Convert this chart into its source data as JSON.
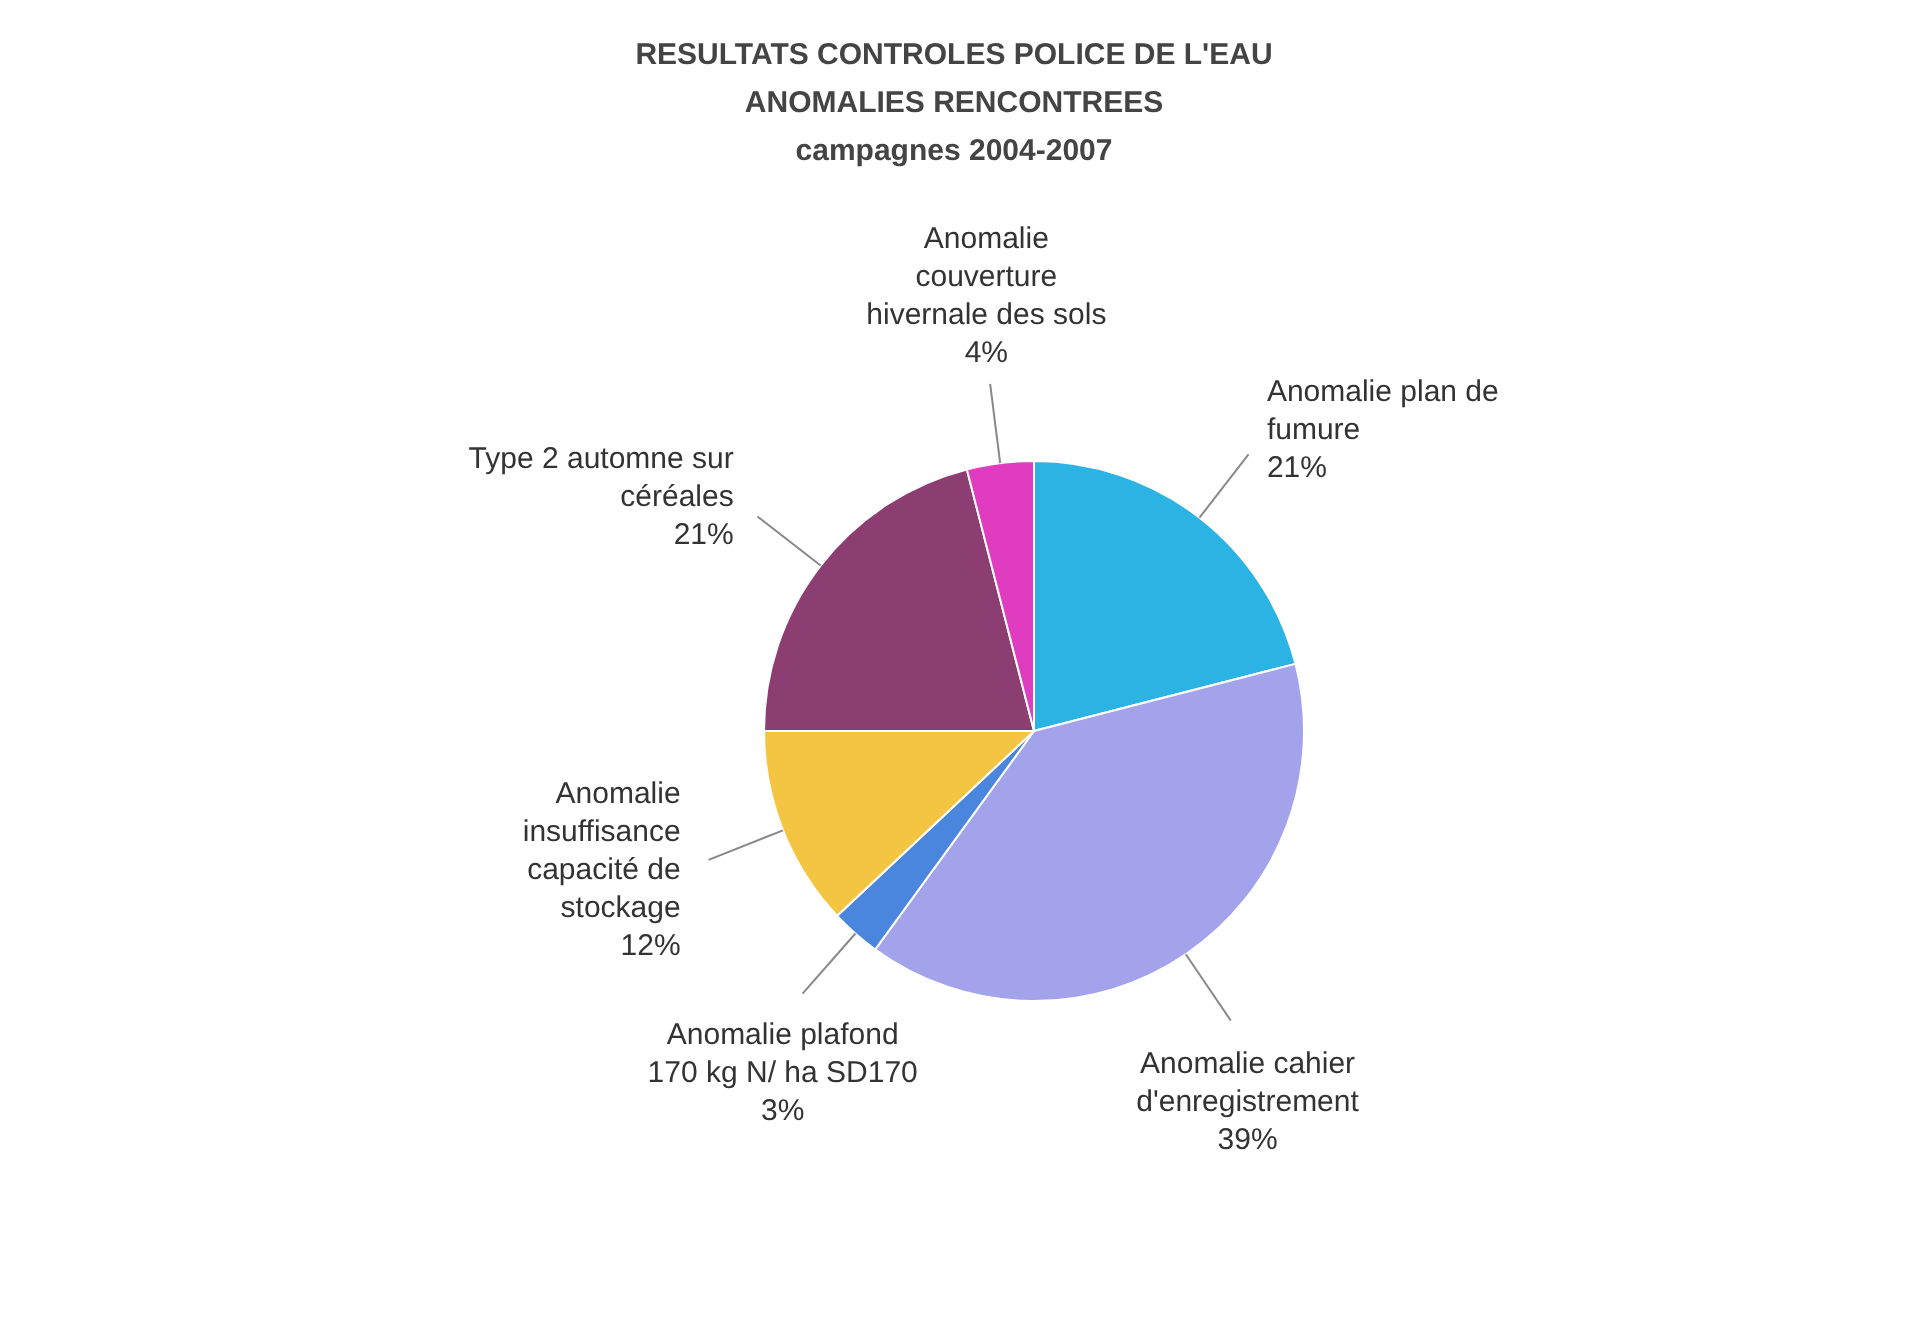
{
  "chart_data": {
    "type": "pie",
    "title": "RESULTATS CONTROLES POLICE DE L'EAU",
    "subtitle": "ANOMALIES RENCONTREES",
    "annotations": [
      "campagnes 2004-2007"
    ],
    "categories": [
      "Anomalie plan de fumure",
      "Anomalie cahier d'enregistrement",
      "Anomalie plafond 170 kg N/ ha SD170",
      "Anomalie insuffisance capacité de stockage",
      "Type 2 automne sur céréales",
      "Anomalie couverture hivernale des sols"
    ],
    "values": [
      21,
      39,
      3,
      12,
      21,
      4
    ],
    "value_labels": [
      "21%",
      "39%",
      "3%",
      "12%",
      "21%",
      "4%"
    ],
    "colors": [
      "#2bb3e3",
      "#a3a3ec",
      "#4a86de",
      "#f4c443",
      "#8c3d72",
      "#e03cbf"
    ]
  }
}
